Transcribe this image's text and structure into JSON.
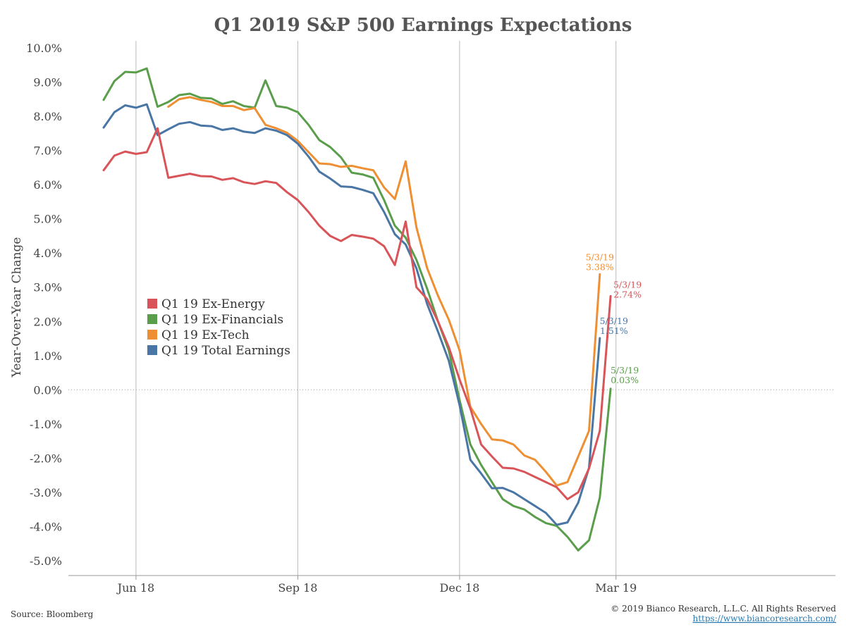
{
  "colors": {
    "ex_energy": "#d95459",
    "ex_financials": "#5a9e4b",
    "ex_tech": "#ef8f33",
    "total": "#4a76a6",
    "axis": "#999999",
    "gridline": "#bbbbbb"
  },
  "footer": {
    "source": "Source: Bloomberg",
    "copyright": "© 2019 Bianco Research, L.L.C. All Rights Reserved",
    "link": "https://www.biancoresearch.com/"
  },
  "chart_data": {
    "type": "line",
    "title": "Q1 2019 S&P 500 Earnings Expectations",
    "xlabel": "",
    "ylabel": "Year-Over-Year Change",
    "ylim": [
      -5.0,
      10.0
    ],
    "yticks": [
      "10.0%",
      "9.0%",
      "8.0%",
      "7.0%",
      "6.0%",
      "5.0%",
      "4.0%",
      "3.0%",
      "2.0%",
      "1.0%",
      "0.0%",
      "-1.0%",
      "-2.0%",
      "-3.0%",
      "-4.0%",
      "-5.0%"
    ],
    "ytick_values": [
      10,
      9,
      8,
      7,
      6,
      5,
      4,
      3,
      2,
      1,
      0,
      -1,
      -2,
      -3,
      -4,
      -5
    ],
    "xticks": [
      {
        "label": "Jun 18",
        "index": 3
      },
      {
        "label": "Sep 18",
        "index": 18
      },
      {
        "label": "Dec 18",
        "index": 33
      },
      {
        "label": "Mar 19",
        "index": 47.5
      }
    ],
    "x_count": 53,
    "grid": "vertical at x ticks",
    "legend_position": "center-left",
    "series": [
      {
        "name": "Q1 19 Ex-Energy",
        "color_key": "ex_energy",
        "values": [
          6.42,
          6.85,
          6.97,
          6.9,
          6.95,
          7.65,
          6.2,
          6.26,
          6.32,
          6.25,
          6.24,
          6.14,
          6.19,
          6.07,
          6.02,
          6.1,
          6.05,
          5.78,
          5.55,
          5.2,
          4.8,
          4.5,
          4.35,
          4.53,
          4.48,
          4.42,
          4.2,
          3.65,
          4.92,
          3.0,
          2.65,
          2.0,
          1.25,
          0.3,
          -0.55,
          -1.6,
          -1.95,
          -2.28,
          -2.3,
          -2.4,
          -2.55,
          -2.7,
          -2.85,
          -3.2,
          -3.0,
          -2.3,
          -1.2,
          2.74
        ]
      },
      {
        "name": "Q1 19 Ex-Financials",
        "color_key": "ex_financials",
        "values": [
          8.48,
          9.03,
          9.3,
          9.28,
          9.4,
          8.28,
          8.42,
          8.62,
          8.66,
          8.54,
          8.52,
          8.36,
          8.44,
          8.3,
          8.25,
          9.05,
          8.3,
          8.25,
          8.12,
          7.75,
          7.3,
          7.1,
          6.8,
          6.35,
          6.3,
          6.2,
          5.55,
          4.8,
          4.45,
          3.8,
          2.95,
          2.0,
          1.15,
          -0.3,
          -1.6,
          -2.2,
          -2.7,
          -3.2,
          -3.4,
          -3.5,
          -3.72,
          -3.9,
          -3.98,
          -4.3,
          -4.7,
          -4.4,
          -3.15,
          0.03
        ]
      },
      {
        "name": "Q1 19 Ex-Tech",
        "color_key": "ex_tech",
        "start_index": 6,
        "values": [
          8.28,
          8.5,
          8.56,
          8.48,
          8.42,
          8.3,
          8.3,
          8.18,
          8.24,
          7.75,
          7.65,
          7.52,
          7.28,
          6.95,
          6.62,
          6.6,
          6.52,
          6.55,
          6.48,
          6.42,
          5.92,
          5.58,
          6.68,
          4.75,
          3.55,
          2.75,
          2.05,
          1.15,
          -0.5,
          -1.0,
          -1.45,
          -1.48,
          -1.6,
          -1.92,
          -2.05,
          -2.4,
          -2.8,
          -2.7,
          -1.95,
          -1.2,
          3.38
        ]
      },
      {
        "name": "Q1 19 Total Earnings",
        "color_key": "total",
        "values": [
          7.67,
          8.12,
          8.32,
          8.25,
          8.35,
          7.45,
          7.62,
          7.78,
          7.83,
          7.73,
          7.71,
          7.6,
          7.65,
          7.55,
          7.51,
          7.65,
          7.58,
          7.45,
          7.2,
          6.82,
          6.38,
          6.18,
          5.95,
          5.93,
          5.85,
          5.75,
          5.2,
          4.55,
          4.25,
          3.55,
          2.5,
          1.7,
          0.85,
          -0.45,
          -2.05,
          -2.45,
          -2.88,
          -2.87,
          -3.0,
          -3.2,
          -3.4,
          -3.6,
          -3.95,
          -3.88,
          -3.3,
          -2.28,
          1.51
        ]
      }
    ],
    "end_labels": [
      {
        "series_key": "ex_tech",
        "date": "5/3/19",
        "value_text": "3.38%"
      },
      {
        "series_key": "ex_energy",
        "date": "5/3/19",
        "value_text": "2.74%"
      },
      {
        "series_key": "total",
        "date": "5/3/19",
        "value_text": "1.51%"
      },
      {
        "series_key": "ex_financials",
        "date": "5/3/19",
        "value_text": "0.03%"
      }
    ]
  }
}
